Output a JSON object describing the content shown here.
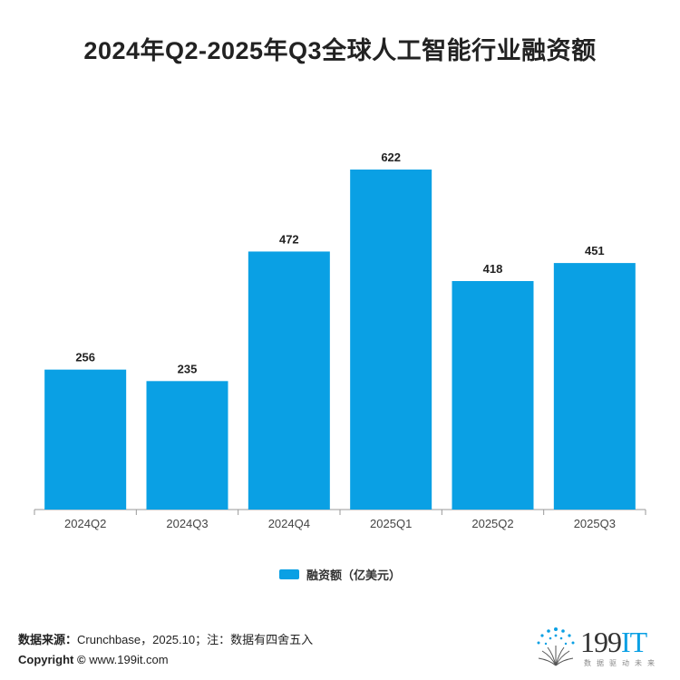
{
  "chart_data": {
    "type": "bar",
    "title": "2024年Q2-2025年Q3全球人工智能行业融资额",
    "categories": [
      "2024Q2",
      "2024Q3",
      "2024Q4",
      "2025Q1",
      "2025Q2",
      "2025Q3"
    ],
    "series": [
      {
        "name": "融资额（亿美元）",
        "values": [
          256,
          235,
          472,
          622,
          418,
          451
        ],
        "color": "#0aa0e4"
      }
    ],
    "data_labels": [
      "256",
      "235",
      "472",
      "622",
      "418",
      "451"
    ],
    "ylim": [
      0,
      700
    ],
    "grid": false,
    "legend_position": "bottom"
  },
  "footer": {
    "source_label": "数据来源：",
    "source_text": "Crunchbase，2025.10；注：数据有四舍五入",
    "copyright_label": "Copyright ©",
    "copyright_text": " www.199it.com"
  },
  "logo": {
    "text_main": "199",
    "text_accent": "IT",
    "subtitle": "数据驱动未来"
  },
  "colors": {
    "bar": "#0aa0e4",
    "axis": "#9a9a9a",
    "text": "#222222"
  }
}
